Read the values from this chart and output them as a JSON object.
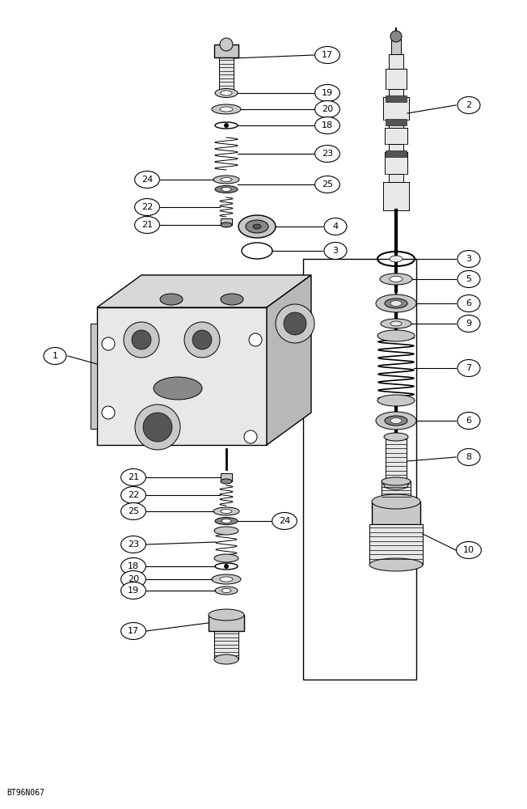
{
  "bg_color": "#ffffff",
  "watermark": "BT96N067",
  "fig_width": 6.52,
  "fig_height": 10.0,
  "dpi": 100
}
